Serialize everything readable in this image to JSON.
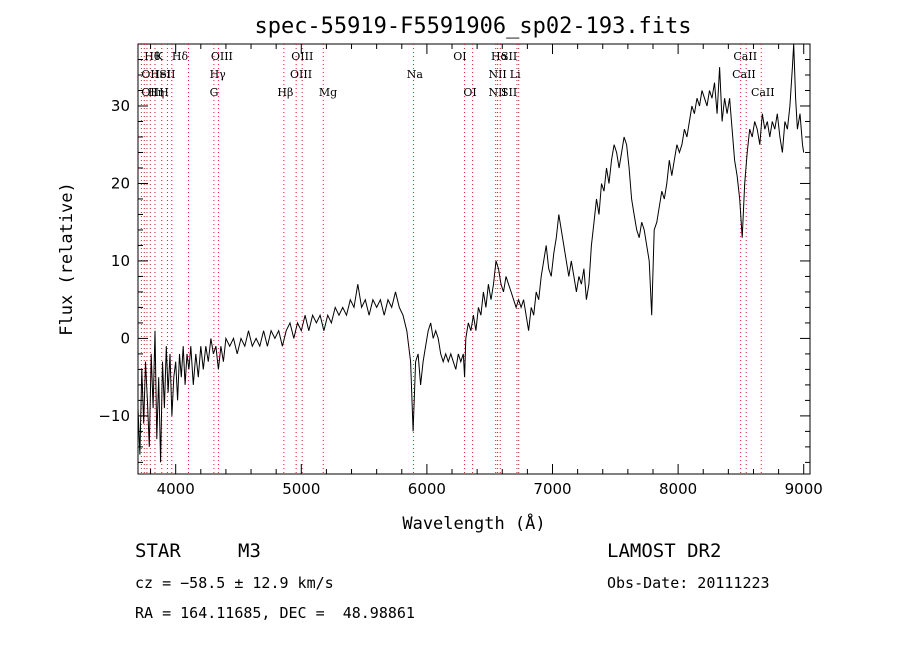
{
  "chart_data": {
    "type": "line",
    "title": "spec-55919-F5591906_sp02-193.fits",
    "xlabel": "Wavelength (Å)",
    "ylabel": "Flux (relative)",
    "xlim": [
      3700,
      9050
    ],
    "ylim": [
      -17.5,
      38
    ],
    "xticks": [
      4000,
      5000,
      6000,
      7000,
      8000,
      9000
    ],
    "yticks": [
      -10,
      0,
      10,
      20,
      30
    ],
    "grid": false,
    "series": [
      {
        "points": [
          [
            3700,
            -9
          ],
          [
            3715,
            -15
          ],
          [
            3730,
            -4
          ],
          [
            3745,
            -11
          ],
          [
            3760,
            -3
          ],
          [
            3775,
            -8
          ],
          [
            3790,
            -14
          ],
          [
            3805,
            -2
          ],
          [
            3820,
            -9
          ],
          [
            3835,
            1
          ],
          [
            3850,
            -13
          ],
          [
            3865,
            -5
          ],
          [
            3880,
            -16
          ],
          [
            3895,
            -3
          ],
          [
            3910,
            -9
          ],
          [
            3925,
            -1
          ],
          [
            3940,
            -7
          ],
          [
            3955,
            -2
          ],
          [
            3970,
            -10
          ],
          [
            3985,
            -5
          ],
          [
            4000,
            -3
          ],
          [
            4015,
            -8
          ],
          [
            4030,
            -2
          ],
          [
            4045,
            -5
          ],
          [
            4060,
            -1
          ],
          [
            4075,
            -6
          ],
          [
            4090,
            -2
          ],
          [
            4105,
            -4
          ],
          [
            4120,
            -1
          ],
          [
            4140,
            -6
          ],
          [
            4160,
            -2
          ],
          [
            4180,
            -5
          ],
          [
            4200,
            -1
          ],
          [
            4220,
            -4
          ],
          [
            4240,
            -1
          ],
          [
            4260,
            -3
          ],
          [
            4280,
            0
          ],
          [
            4300,
            -2
          ],
          [
            4320,
            -1
          ],
          [
            4340,
            -4
          ],
          [
            4360,
            -1
          ],
          [
            4380,
            -3
          ],
          [
            4400,
            0
          ],
          [
            4430,
            -1
          ],
          [
            4460,
            0
          ],
          [
            4490,
            -2
          ],
          [
            4520,
            0
          ],
          [
            4550,
            -1
          ],
          [
            4580,
            1
          ],
          [
            4610,
            -1
          ],
          [
            4640,
            0
          ],
          [
            4670,
            -1
          ],
          [
            4700,
            1
          ],
          [
            4730,
            -1
          ],
          [
            4760,
            1
          ],
          [
            4790,
            0
          ],
          [
            4820,
            1
          ],
          [
            4850,
            -1
          ],
          [
            4880,
            1
          ],
          [
            4910,
            2
          ],
          [
            4940,
            0
          ],
          [
            4970,
            2
          ],
          [
            5000,
            1
          ],
          [
            5030,
            3
          ],
          [
            5060,
            1
          ],
          [
            5090,
            3
          ],
          [
            5120,
            2
          ],
          [
            5150,
            3
          ],
          [
            5180,
            1
          ],
          [
            5210,
            3
          ],
          [
            5240,
            2
          ],
          [
            5270,
            4
          ],
          [
            5300,
            3
          ],
          [
            5330,
            4
          ],
          [
            5360,
            3
          ],
          [
            5390,
            5
          ],
          [
            5420,
            4
          ],
          [
            5450,
            7
          ],
          [
            5480,
            4
          ],
          [
            5510,
            5
          ],
          [
            5540,
            3
          ],
          [
            5570,
            5
          ],
          [
            5600,
            4
          ],
          [
            5630,
            5
          ],
          [
            5660,
            3
          ],
          [
            5690,
            5
          ],
          [
            5720,
            4
          ],
          [
            5750,
            6
          ],
          [
            5780,
            4
          ],
          [
            5810,
            3
          ],
          [
            5840,
            1
          ],
          [
            5870,
            -3
          ],
          [
            5890,
            -12
          ],
          [
            5910,
            -3
          ],
          [
            5930,
            -2
          ],
          [
            5950,
            -6
          ],
          [
            5970,
            -3
          ],
          [
            5990,
            -1
          ],
          [
            6010,
            1
          ],
          [
            6030,
            2
          ],
          [
            6050,
            0
          ],
          [
            6070,
            1
          ],
          [
            6090,
            0
          ],
          [
            6110,
            -2
          ],
          [
            6130,
            -3
          ],
          [
            6150,
            -2
          ],
          [
            6170,
            -3
          ],
          [
            6190,
            -2
          ],
          [
            6210,
            -3
          ],
          [
            6230,
            -4
          ],
          [
            6250,
            -2
          ],
          [
            6270,
            -3
          ],
          [
            6290,
            -2
          ],
          [
            6300,
            -5
          ],
          [
            6310,
            0
          ],
          [
            6330,
            2
          ],
          [
            6350,
            1
          ],
          [
            6370,
            3
          ],
          [
            6390,
            1
          ],
          [
            6410,
            4
          ],
          [
            6430,
            3
          ],
          [
            6450,
            6
          ],
          [
            6470,
            4
          ],
          [
            6490,
            7
          ],
          [
            6510,
            5
          ],
          [
            6530,
            7
          ],
          [
            6550,
            10
          ],
          [
            6570,
            9
          ],
          [
            6590,
            7
          ],
          [
            6610,
            6
          ],
          [
            6630,
            8
          ],
          [
            6650,
            7
          ],
          [
            6670,
            6
          ],
          [
            6690,
            5
          ],
          [
            6710,
            4
          ],
          [
            6730,
            5
          ],
          [
            6750,
            4
          ],
          [
            6770,
            5
          ],
          [
            6790,
            3
          ],
          [
            6810,
            1
          ],
          [
            6830,
            4
          ],
          [
            6850,
            3
          ],
          [
            6870,
            6
          ],
          [
            6890,
            5
          ],
          [
            6910,
            8
          ],
          [
            6930,
            10
          ],
          [
            6950,
            12
          ],
          [
            6970,
            9
          ],
          [
            6990,
            8
          ],
          [
            7010,
            11
          ],
          [
            7030,
            13
          ],
          [
            7050,
            16
          ],
          [
            7070,
            14
          ],
          [
            7090,
            12
          ],
          [
            7110,
            10
          ],
          [
            7130,
            8
          ],
          [
            7150,
            10
          ],
          [
            7170,
            8
          ],
          [
            7190,
            6
          ],
          [
            7210,
            8
          ],
          [
            7230,
            7
          ],
          [
            7250,
            9
          ],
          [
            7270,
            5
          ],
          [
            7290,
            7
          ],
          [
            7310,
            12
          ],
          [
            7330,
            15
          ],
          [
            7350,
            18
          ],
          [
            7370,
            16
          ],
          [
            7390,
            20
          ],
          [
            7410,
            19
          ],
          [
            7430,
            22
          ],
          [
            7450,
            20
          ],
          [
            7470,
            23
          ],
          [
            7490,
            25
          ],
          [
            7510,
            24
          ],
          [
            7530,
            22
          ],
          [
            7550,
            24
          ],
          [
            7570,
            26
          ],
          [
            7590,
            25
          ],
          [
            7610,
            22
          ],
          [
            7630,
            18
          ],
          [
            7650,
            16
          ],
          [
            7670,
            14
          ],
          [
            7690,
            13
          ],
          [
            7710,
            15
          ],
          [
            7730,
            14
          ],
          [
            7750,
            12
          ],
          [
            7770,
            10
          ],
          [
            7790,
            3
          ],
          [
            7810,
            14
          ],
          [
            7830,
            15
          ],
          [
            7850,
            17
          ],
          [
            7870,
            19
          ],
          [
            7890,
            18
          ],
          [
            7910,
            20
          ],
          [
            7930,
            23
          ],
          [
            7950,
            21
          ],
          [
            7970,
            23
          ],
          [
            7990,
            25
          ],
          [
            8010,
            24
          ],
          [
            8030,
            25
          ],
          [
            8050,
            27
          ],
          [
            8070,
            26
          ],
          [
            8090,
            28
          ],
          [
            8110,
            30
          ],
          [
            8130,
            29
          ],
          [
            8150,
            31
          ],
          [
            8170,
            30
          ],
          [
            8190,
            32
          ],
          [
            8210,
            31
          ],
          [
            8230,
            30
          ],
          [
            8250,
            32
          ],
          [
            8270,
            31
          ],
          [
            8290,
            33
          ],
          [
            8310,
            29
          ],
          [
            8330,
            35
          ],
          [
            8350,
            28
          ],
          [
            8370,
            31
          ],
          [
            8390,
            29
          ],
          [
            8410,
            31
          ],
          [
            8430,
            27
          ],
          [
            8450,
            23
          ],
          [
            8470,
            21
          ],
          [
            8490,
            18
          ],
          [
            8510,
            13
          ],
          [
            8530,
            20
          ],
          [
            8550,
            24
          ],
          [
            8570,
            27
          ],
          [
            8590,
            26
          ],
          [
            8610,
            28
          ],
          [
            8630,
            27
          ],
          [
            8650,
            25
          ],
          [
            8670,
            29
          ],
          [
            8690,
            27
          ],
          [
            8710,
            28
          ],
          [
            8730,
            26
          ],
          [
            8750,
            28
          ],
          [
            8770,
            27
          ],
          [
            8790,
            29
          ],
          [
            8810,
            26
          ],
          [
            8830,
            24
          ],
          [
            8850,
            28
          ],
          [
            8870,
            27
          ],
          [
            8890,
            30
          ],
          [
            8910,
            35
          ],
          [
            8920,
            38
          ],
          [
            8935,
            31
          ],
          [
            8950,
            27
          ],
          [
            8970,
            29
          ],
          [
            8990,
            25
          ],
          [
            9000,
            24
          ]
        ]
      }
    ],
    "line_markers": [
      {
        "x": 3750,
        "row": 0,
        "label": "Hθ"
      },
      {
        "x": 3834,
        "row": 0,
        "label": "K"
      },
      {
        "x": 3970,
        "row": 0,
        "label": "Hδ"
      },
      {
        "x": 3727,
        "row": 1,
        "label": "OII"
      },
      {
        "x": 3798,
        "row": 1,
        "label": "HeI"
      },
      {
        "x": 3869,
        "row": 1,
        "label": "SII"
      },
      {
        "x": 3727,
        "row": 2,
        "label": "OII"
      },
      {
        "x": 3780,
        "row": 2,
        "label": "Hη"
      },
      {
        "x": 3869,
        "row": 2,
        "label": "H"
      },
      {
        "x": 4280,
        "row": 0,
        "label": "OIII"
      },
      {
        "x": 4270,
        "row": 1,
        "label": "Hγ"
      },
      {
        "x": 4270,
        "row": 2,
        "label": "G"
      },
      {
        "x": 4920,
        "row": 0,
        "label": "OIII"
      },
      {
        "x": 4910,
        "row": 1,
        "label": "OIII"
      },
      {
        "x": 4810,
        "row": 2,
        "label": "Hβ"
      },
      {
        "x": 5140,
        "row": 2,
        "label": "Mg"
      },
      {
        "x": 5840,
        "row": 1,
        "label": "Na"
      },
      {
        "x": 6210,
        "row": 0,
        "label": "OI"
      },
      {
        "x": 6290,
        "row": 2,
        "label": "OI"
      },
      {
        "x": 6510,
        "row": 0,
        "label": "Hα"
      },
      {
        "x": 6590,
        "row": 0,
        "label": "SII"
      },
      {
        "x": 6490,
        "row": 1,
        "label": "NII"
      },
      {
        "x": 6660,
        "row": 1,
        "label": "Li"
      },
      {
        "x": 6490,
        "row": 2,
        "label": "NII"
      },
      {
        "x": 6590,
        "row": 2,
        "label": "SII"
      },
      {
        "x": 8440,
        "row": 0,
        "label": "CaII"
      },
      {
        "x": 8430,
        "row": 1,
        "label": "CaII"
      },
      {
        "x": 8580,
        "row": 2,
        "label": "CaII"
      }
    ],
    "line_positions": [
      3727,
      3750,
      3771,
      3798,
      3835,
      3889,
      3934,
      3969,
      4102,
      4304,
      4340,
      4861,
      4959,
      5007,
      5175,
      5893,
      6300,
      6364,
      6548,
      6563,
      6584,
      6717,
      6731,
      8498,
      8542,
      8662
    ]
  },
  "footer": {
    "object_type": "STAR",
    "subclass": "M3",
    "release": "LAMOST DR2",
    "cz": "cz = −58.5 ± 12.9 km/s",
    "obs_date": "Obs-Date: 20111223",
    "coords": "RA = 164.11685, DEC =  48.98861"
  }
}
